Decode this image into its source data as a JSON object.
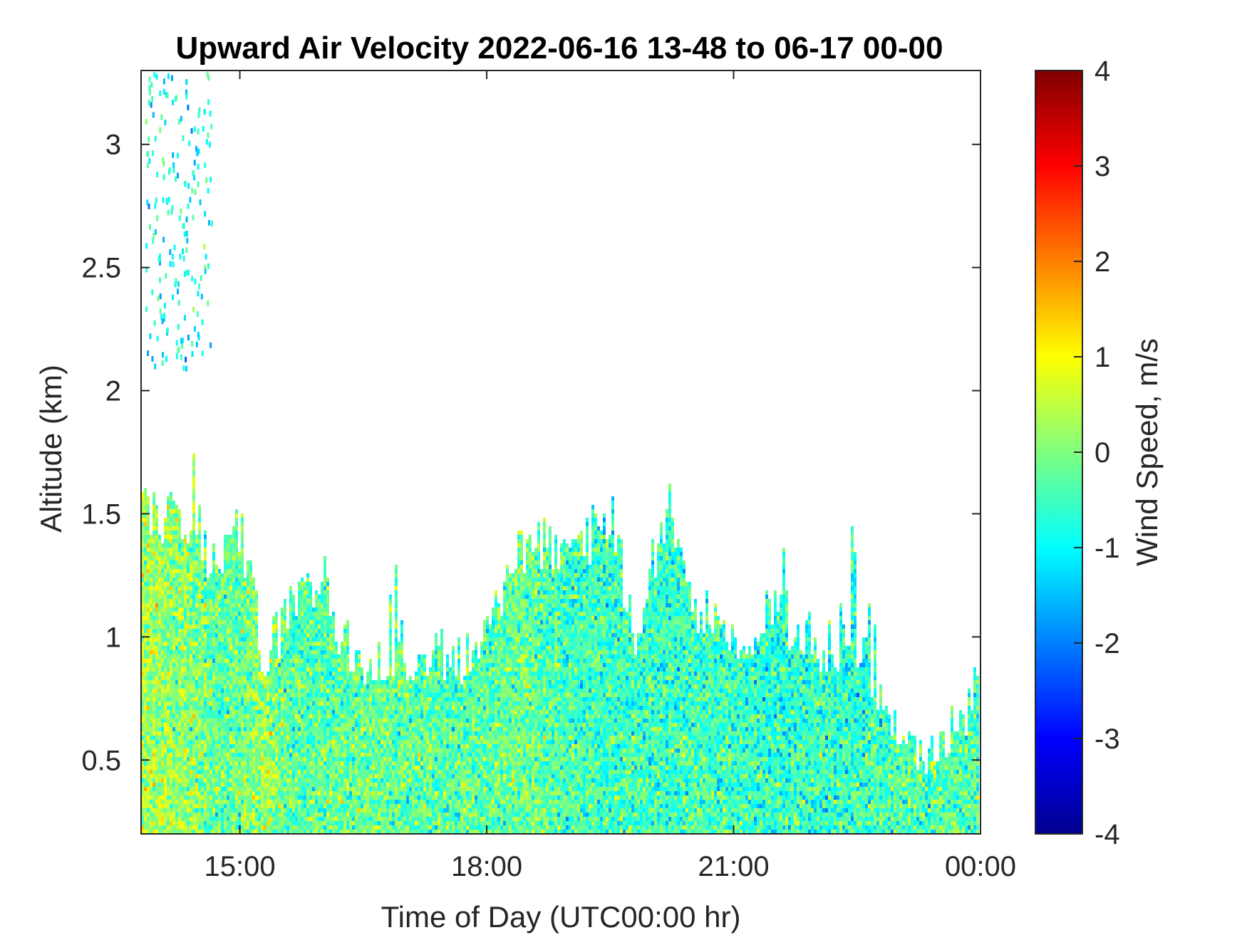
{
  "chart_data": {
    "type": "heatmap",
    "title": "Upward Air Velocity 2022-06-16 13-48 to 06-17 00-00",
    "xlabel": "Time of Day (UTC00:00 hr)",
    "ylabel": "Altitude (km)",
    "x_ticks": [
      "15:00",
      "18:00",
      "21:00",
      "00:00"
    ],
    "x_tick_hours": [
      15,
      18,
      21,
      24
    ],
    "xlim_hours": [
      13.8,
      24.0
    ],
    "y_ticks": [
      0.5,
      1,
      1.5,
      2,
      2.5,
      3
    ],
    "y_tick_labels": [
      "0.5",
      "1",
      "1.5",
      "2",
      "2.5",
      "3"
    ],
    "ylim": [
      0.2,
      3.3
    ],
    "colorbar": {
      "label": "Wind Speed, m/s",
      "range": [
        -4,
        4
      ],
      "ticks": [
        -4,
        -3,
        -2,
        -1,
        0,
        1,
        2,
        3,
        4
      ],
      "tick_labels": [
        "-4",
        "-3",
        "-2",
        "-1",
        "0",
        "1",
        "2",
        "3",
        "4"
      ],
      "colormap": "jet"
    },
    "approx_data_top_km": [
      {
        "t": 13.8,
        "top": 1.5,
        "mean": 0.3
      },
      {
        "t": 14.0,
        "top": 1.5,
        "mean": 0.2
      },
      {
        "t": 14.5,
        "top": 1.45,
        "mean": 0.0
      },
      {
        "t": 14.7,
        "top": 1.25,
        "mean": -0.3
      },
      {
        "t": 15.0,
        "top": 1.45,
        "mean": -0.2
      },
      {
        "t": 15.3,
        "top": 0.9,
        "mean": 0.2
      },
      {
        "t": 15.6,
        "top": 1.1,
        "mean": -0.4
      },
      {
        "t": 16.0,
        "top": 1.15,
        "mean": -0.3
      },
      {
        "t": 16.5,
        "top": 0.85,
        "mean": -0.2
      },
      {
        "t": 17.0,
        "top": 0.95,
        "mean": -0.3
      },
      {
        "t": 17.5,
        "top": 0.9,
        "mean": -0.4
      },
      {
        "t": 18.0,
        "top": 0.95,
        "mean": -0.3
      },
      {
        "t": 18.5,
        "top": 1.4,
        "mean": -0.2
      },
      {
        "t": 19.0,
        "top": 1.3,
        "mean": -0.5
      },
      {
        "t": 19.5,
        "top": 1.5,
        "mean": -0.6
      },
      {
        "t": 19.8,
        "top": 1.0,
        "mean": -0.5
      },
      {
        "t": 20.2,
        "top": 1.52,
        "mean": -0.6
      },
      {
        "t": 20.6,
        "top": 1.1,
        "mean": -0.5
      },
      {
        "t": 21.0,
        "top": 0.95,
        "mean": -0.6
      },
      {
        "t": 21.5,
        "top": 1.1,
        "mean": -0.7
      },
      {
        "t": 22.0,
        "top": 0.95,
        "mean": -0.6
      },
      {
        "t": 22.5,
        "top": 1.0,
        "mean": -0.7
      },
      {
        "t": 23.0,
        "top": 0.55,
        "mean": -0.4
      },
      {
        "t": 23.5,
        "top": 0.55,
        "mean": -0.5
      },
      {
        "t": 24.0,
        "top": 0.8,
        "mean": -0.5
      }
    ]
  }
}
